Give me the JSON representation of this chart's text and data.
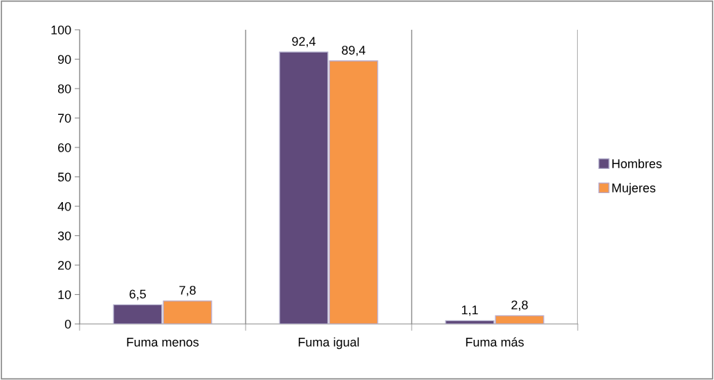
{
  "chart_data": {
    "type": "bar",
    "categories": [
      "Fuma menos",
      "Fuma igual",
      "Fuma más"
    ],
    "series": [
      {
        "name": "Hombres",
        "color": "#604a7b",
        "values": [
          6.5,
          92.4,
          1.1
        ],
        "value_labels": [
          "6,5",
          "92,4",
          "1,1"
        ]
      },
      {
        "name": "Mujeres",
        "color": "#f79646",
        "values": [
          7.8,
          89.4,
          2.8
        ],
        "value_labels": [
          "7,8",
          "89,4",
          "2,8"
        ]
      }
    ],
    "ylim": [
      0,
      100
    ],
    "yticks": [
      0,
      10,
      20,
      30,
      40,
      50,
      60,
      70,
      80,
      90,
      100
    ],
    "grid": "x",
    "legend": "right"
  }
}
